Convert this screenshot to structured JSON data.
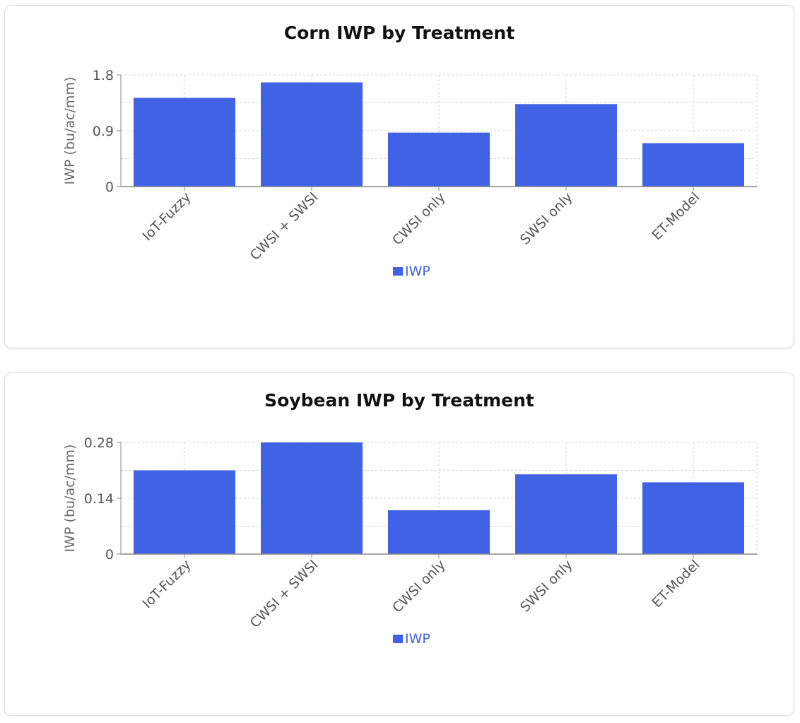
{
  "colors": {
    "bar": "#4062e4",
    "grid": "#d4d4d4",
    "axis": "#888888",
    "tick_text": "#555555",
    "legend_text": "#4062e4",
    "title_text": "#111111"
  },
  "chart_data": [
    {
      "type": "bar",
      "title": "Corn IWP by Treatment",
      "xlabel": "",
      "ylabel": "IWP (bu/ac/mm)",
      "categories": [
        "IoT-Fuzzy",
        "CWSI + SWSI",
        "CWSI only",
        "SWSI only",
        "ET-Model"
      ],
      "series": [
        {
          "name": "IWP",
          "values": [
            1.43,
            1.68,
            0.87,
            1.33,
            0.7
          ]
        }
      ],
      "ylim": [
        0,
        1.8
      ],
      "yticks": [
        0,
        0.9,
        1.8
      ],
      "ytick_labels": [
        "0",
        "0.9",
        "1.8"
      ],
      "grid": true,
      "legend": "bottom-center"
    },
    {
      "type": "bar",
      "title": "Soybean IWP by Treatment",
      "xlabel": "",
      "ylabel": "IWP (bu/ac/mm)",
      "categories": [
        "IoT-Fuzzy",
        "CWSI + SWSI",
        "CWSI only",
        "SWSI only",
        "ET-Model"
      ],
      "series": [
        {
          "name": "IWP",
          "values": [
            0.21,
            0.28,
            0.11,
            0.2,
            0.18
          ]
        }
      ],
      "ylim": [
        0,
        0.28
      ],
      "yticks": [
        0,
        0.14,
        0.28
      ],
      "ytick_labels": [
        "0",
        "0.14",
        "0.28"
      ],
      "grid": true,
      "legend": "bottom-center"
    }
  ]
}
